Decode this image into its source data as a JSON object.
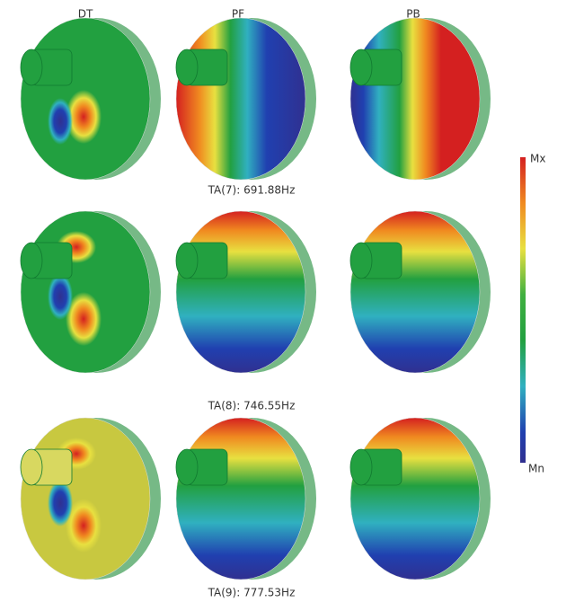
{
  "columns": [
    "DT",
    "PF",
    "PB"
  ],
  "rows": [
    {
      "caption": "TA(7): 691.88Hz"
    },
    {
      "caption": "TA(8): 746.55Hz"
    },
    {
      "caption": "TA(9): 777.53Hz"
    }
  ],
  "legend": {
    "max": "Mx",
    "min": "Mn"
  }
}
